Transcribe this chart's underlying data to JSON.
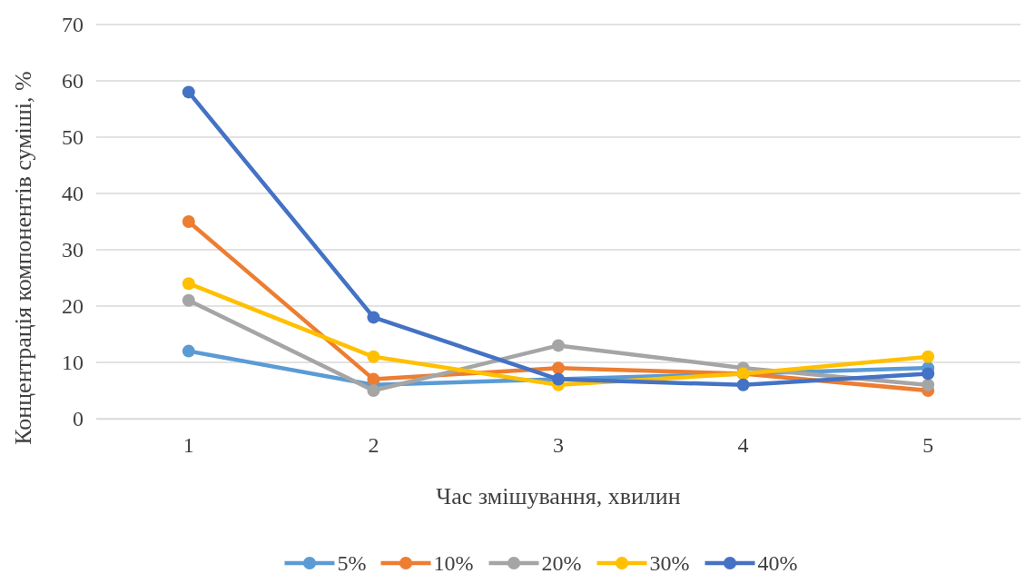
{
  "chart_data": {
    "type": "line",
    "xlabel": "Час змішування, хвилин",
    "ylabel": "Концентрація компонентів суміші, %",
    "categories": [
      "1",
      "2",
      "3",
      "4",
      "5"
    ],
    "ylim": [
      0,
      70
    ],
    "yticks": [
      0,
      10,
      20,
      30,
      40,
      50,
      60,
      70
    ],
    "grid": "y",
    "legend": "bottom",
    "marker": "circle",
    "series": [
      {
        "name": "5%",
        "color": "#5b9bd5",
        "values": [
          12,
          6,
          7,
          8,
          9
        ]
      },
      {
        "name": "10%",
        "color": "#ed7d31",
        "values": [
          35,
          7,
          9,
          8,
          5
        ]
      },
      {
        "name": "20%",
        "color": "#a5a5a5",
        "values": [
          21,
          5,
          13,
          9,
          6
        ]
      },
      {
        "name": "30%",
        "color": "#ffc000",
        "values": [
          24,
          11,
          6,
          8,
          11
        ]
      },
      {
        "name": "40%",
        "color": "#4472c4",
        "values": [
          58,
          18,
          7,
          6,
          8
        ]
      }
    ]
  }
}
